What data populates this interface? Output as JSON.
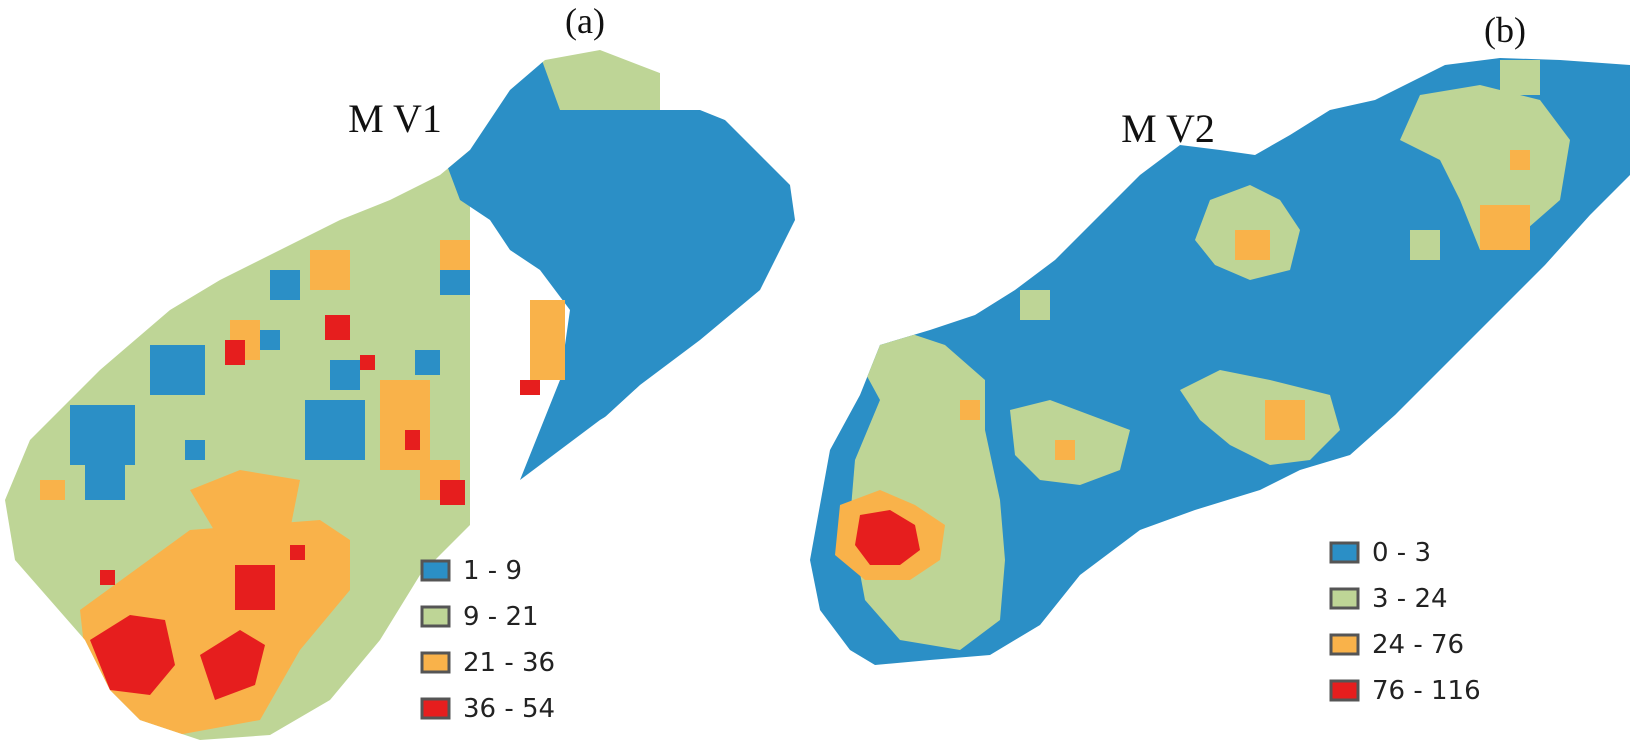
{
  "colors": {
    "class1": "#2b8fc6",
    "class2": "#bed596",
    "class3": "#f9b24a",
    "class4": "#e61e1e",
    "swatch_border": "#555555"
  },
  "panels": [
    {
      "id": "a",
      "panel_label": "(a)",
      "title": "M V1",
      "legend": [
        {
          "label": "1 - 9",
          "color_key": "class1"
        },
        {
          "label": "9 - 21",
          "color_key": "class2"
        },
        {
          "label": "21 - 36",
          "color_key": "class3"
        },
        {
          "label": "36 - 54",
          "color_key": "class4"
        }
      ]
    },
    {
      "id": "b",
      "panel_label": "(b)",
      "title": "M V2",
      "legend": [
        {
          "label": "0 - 3",
          "color_key": "class1"
        },
        {
          "label": "3 - 24",
          "color_key": "class2"
        },
        {
          "label": "24 - 76",
          "color_key": "class3"
        },
        {
          "label": "76 - 116",
          "color_key": "class4"
        }
      ]
    }
  ]
}
